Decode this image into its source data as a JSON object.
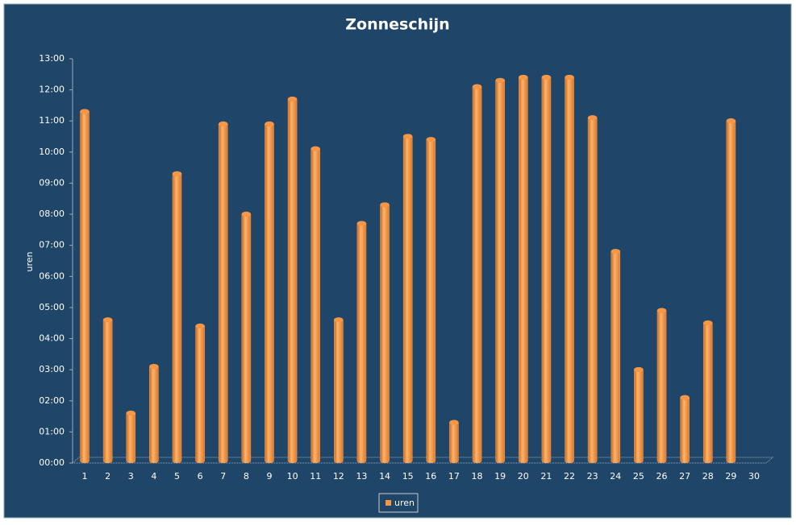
{
  "chart_data": {
    "type": "bar",
    "title": "Zonneschijn",
    "y_label": "uren",
    "categories": [
      "1",
      "2",
      "3",
      "4",
      "5",
      "6",
      "7",
      "8",
      "9",
      "10",
      "11",
      "12",
      "13",
      "14",
      "15",
      "16",
      "17",
      "18",
      "19",
      "20",
      "21",
      "22",
      "23",
      "24",
      "25",
      "26",
      "27",
      "28",
      "29",
      "30"
    ],
    "series": [
      {
        "name": "uren",
        "color": "#f79646",
        "values": [
          11.3,
          4.6,
          1.6,
          3.1,
          9.3,
          4.4,
          10.9,
          8.0,
          10.9,
          11.7,
          10.1,
          4.6,
          7.7,
          8.3,
          10.5,
          10.4,
          1.3,
          12.1,
          12.3,
          12.4,
          12.4,
          12.4,
          11.1,
          6.8,
          3.0,
          4.9,
          2.1,
          4.5,
          11.0,
          null
        ]
      }
    ],
    "ylim": [
      0,
      13
    ],
    "yticks": [
      {
        "value": 0,
        "label": "00:00"
      },
      {
        "value": 1,
        "label": "01:00"
      },
      {
        "value": 2,
        "label": "02:00"
      },
      {
        "value": 3,
        "label": "03:00"
      },
      {
        "value": 4,
        "label": "04:00"
      },
      {
        "value": 5,
        "label": "05:00"
      },
      {
        "value": 6,
        "label": "06:00"
      },
      {
        "value": 7,
        "label": "07:00"
      },
      {
        "value": 8,
        "label": "08:00"
      },
      {
        "value": 9,
        "label": "09:00"
      },
      {
        "value": 10,
        "label": "10:00"
      },
      {
        "value": 11,
        "label": "11:00"
      },
      {
        "value": 12,
        "label": "12:00"
      },
      {
        "value": 13,
        "label": "13:00"
      }
    ],
    "grid": false,
    "legend": "bottom"
  }
}
